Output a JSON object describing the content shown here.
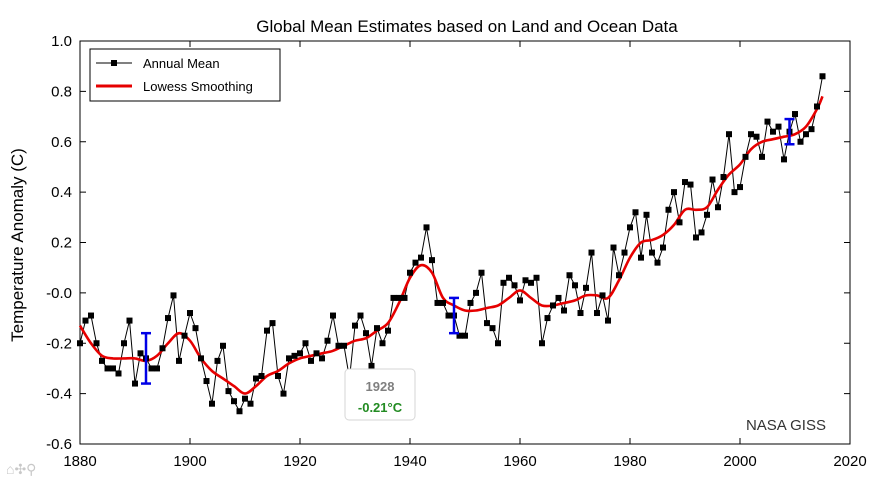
{
  "chart_data": {
    "type": "line",
    "title": "Global Mean Estimates based on Land and Ocean Data",
    "xlabel": "",
    "ylabel": "Temperature Anomaly (C)",
    "xlim": [
      1880,
      2020
    ],
    "ylim": [
      -0.6,
      1.0
    ],
    "x_ticks": [
      "1880",
      "1900",
      "1920",
      "1940",
      "1960",
      "1980",
      "2000",
      "2020"
    ],
    "y_ticks": [
      "1.0",
      "0.8",
      "0.6",
      "0.4",
      "0.2",
      "-0.0",
      "-0.2",
      "-0.4",
      "-0.6"
    ],
    "legend_position": "top-left",
    "grid": false,
    "series": [
      {
        "name": "Annual Mean",
        "color": "#000000",
        "marker": "square",
        "x": [
          1880,
          1881,
          1882,
          1883,
          1884,
          1885,
          1886,
          1887,
          1888,
          1889,
          1890,
          1891,
          1892,
          1893,
          1894,
          1895,
          1896,
          1897,
          1898,
          1899,
          1900,
          1901,
          1902,
          1903,
          1904,
          1905,
          1906,
          1907,
          1908,
          1909,
          1910,
          1911,
          1912,
          1913,
          1914,
          1915,
          1916,
          1917,
          1918,
          1919,
          1920,
          1921,
          1922,
          1923,
          1924,
          1925,
          1926,
          1927,
          1928,
          1929,
          1930,
          1931,
          1932,
          1933,
          1934,
          1935,
          1936,
          1937,
          1938,
          1939,
          1940,
          1941,
          1942,
          1943,
          1944,
          1945,
          1946,
          1947,
          1948,
          1949,
          1950,
          1951,
          1952,
          1953,
          1954,
          1955,
          1956,
          1957,
          1958,
          1959,
          1960,
          1961,
          1962,
          1963,
          1964,
          1965,
          1966,
          1967,
          1968,
          1969,
          1970,
          1971,
          1972,
          1973,
          1974,
          1975,
          1976,
          1977,
          1978,
          1979,
          1980,
          1981,
          1982,
          1983,
          1984,
          1985,
          1986,
          1987,
          1988,
          1989,
          1990,
          1991,
          1992,
          1993,
          1994,
          1995,
          1996,
          1997,
          1998,
          1999,
          2000,
          2001,
          2002,
          2003,
          2004,
          2005,
          2006,
          2007,
          2008,
          2009,
          2010,
          2011,
          2012,
          2013,
          2014,
          2015
        ],
        "values": [
          -0.2,
          -0.11,
          -0.09,
          -0.2,
          -0.27,
          -0.3,
          -0.3,
          -0.32,
          -0.2,
          -0.11,
          -0.36,
          -0.24,
          -0.26,
          -0.3,
          -0.3,
          -0.22,
          -0.1,
          -0.01,
          -0.27,
          -0.17,
          -0.08,
          -0.14,
          -0.26,
          -0.35,
          -0.44,
          -0.27,
          -0.21,
          -0.39,
          -0.43,
          -0.47,
          -0.42,
          -0.44,
          -0.34,
          -0.33,
          -0.15,
          -0.12,
          -0.33,
          -0.4,
          -0.26,
          -0.25,
          -0.24,
          -0.2,
          -0.27,
          -0.24,
          -0.26,
          -0.19,
          -0.09,
          -0.21,
          -0.21,
          -0.34,
          -0.13,
          -0.09,
          -0.16,
          -0.29,
          -0.14,
          -0.2,
          -0.15,
          -0.02,
          -0.02,
          -0.02,
          0.08,
          0.12,
          0.14,
          0.26,
          0.13,
          -0.04,
          -0.04,
          -0.09,
          -0.09,
          -0.17,
          -0.17,
          -0.04,
          0.0,
          0.08,
          -0.12,
          -0.14,
          -0.2,
          0.04,
          0.06,
          0.03,
          -0.03,
          0.05,
          0.04,
          0.06,
          -0.2,
          -0.1,
          -0.05,
          -0.02,
          -0.07,
          0.07,
          0.03,
          -0.08,
          0.02,
          0.16,
          -0.08,
          -0.01,
          -0.11,
          0.18,
          0.07,
          0.16,
          0.26,
          0.32,
          0.14,
          0.31,
          0.16,
          0.12,
          0.18,
          0.33,
          0.4,
          0.28,
          0.44,
          0.43,
          0.22,
          0.24,
          0.31,
          0.45,
          0.34,
          0.46,
          0.63,
          0.4,
          0.42,
          0.54,
          0.63,
          0.62,
          0.54,
          0.68,
          0.64,
          0.66,
          0.53,
          0.64,
          0.71,
          0.6,
          0.63,
          0.65,
          0.74,
          0.86
        ]
      },
      {
        "name": "Lowess Smoothing",
        "color": "#e60000",
        "x": [
          1880,
          1882,
          1884,
          1886,
          1888,
          1890,
          1892,
          1894,
          1896,
          1898,
          1900,
          1902,
          1904,
          1906,
          1908,
          1910,
          1912,
          1914,
          1916,
          1918,
          1920,
          1922,
          1924,
          1926,
          1928,
          1930,
          1932,
          1934,
          1936,
          1938,
          1940,
          1942,
          1944,
          1946,
          1948,
          1950,
          1952,
          1954,
          1956,
          1958,
          1960,
          1962,
          1964,
          1966,
          1968,
          1970,
          1972,
          1974,
          1976,
          1978,
          1980,
          1982,
          1984,
          1986,
          1988,
          1990,
          1992,
          1994,
          1996,
          1998,
          2000,
          2002,
          2004,
          2006,
          2008,
          2010,
          2012,
          2014,
          2015
        ],
        "values": [
          -0.13,
          -0.2,
          -0.25,
          -0.26,
          -0.26,
          -0.26,
          -0.27,
          -0.25,
          -0.2,
          -0.16,
          -0.19,
          -0.26,
          -0.31,
          -0.34,
          -0.37,
          -0.4,
          -0.37,
          -0.33,
          -0.31,
          -0.28,
          -0.26,
          -0.25,
          -0.24,
          -0.23,
          -0.21,
          -0.19,
          -0.18,
          -0.15,
          -0.12,
          -0.04,
          0.06,
          0.11,
          0.08,
          -0.02,
          -0.05,
          -0.07,
          -0.07,
          -0.06,
          -0.05,
          -0.02,
          0.01,
          -0.02,
          -0.05,
          -0.05,
          -0.04,
          -0.03,
          -0.01,
          -0.01,
          -0.02,
          0.05,
          0.14,
          0.2,
          0.21,
          0.23,
          0.27,
          0.33,
          0.33,
          0.34,
          0.41,
          0.47,
          0.51,
          0.57,
          0.6,
          0.61,
          0.62,
          0.63,
          0.66,
          0.73,
          0.78
        ]
      }
    ],
    "error_bars": [
      {
        "x": 1892,
        "y": -0.26,
        "low": -0.36,
        "high": -0.16
      },
      {
        "x": 1948,
        "y": -0.09,
        "low": -0.16,
        "high": -0.02
      },
      {
        "x": 2009,
        "y": 0.64,
        "low": 0.59,
        "high": 0.69
      }
    ],
    "error_bar_color": "#0000e6",
    "annotations": [
      {
        "text": "NASA GISS",
        "position": "bottom-right"
      }
    ],
    "tooltip": {
      "year": "1928",
      "value": "-0.21°C"
    }
  },
  "toolbar": {
    "icons": [
      "home-icon",
      "pan-icon",
      "zoom-icon"
    ],
    "glyphs": "⌂✣⚲"
  }
}
